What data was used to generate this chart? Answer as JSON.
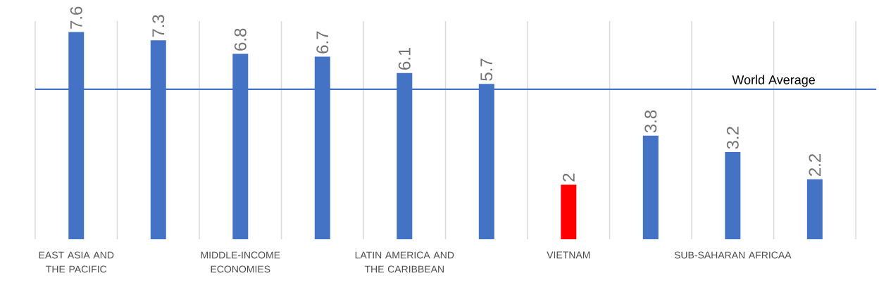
{
  "chart_data": {
    "type": "bar",
    "categories": [
      "EAST ASIA AND THE PACIFIC",
      null,
      "MIDDLE-INCOME ECONOMIES",
      null,
      "LATIN AMERICA AND THE CARIBBEAN",
      null,
      "VIETNAM",
      null,
      "SUB-SAHARAN AFRICAA",
      null
    ],
    "values": [
      7.6,
      7.3,
      6.8,
      6.7,
      6.1,
      5.7,
      2,
      3.8,
      3.2,
      2.2
    ],
    "colors": [
      "#4472c4",
      "#4472c4",
      "#4472c4",
      "#4472c4",
      "#4472c4",
      "#4472c4",
      "#ff0000",
      "#4472c4",
      "#4472c4",
      "#4472c4"
    ],
    "data_labels": true,
    "ylim": [
      0,
      8
    ],
    "tick_labels": "x",
    "grid": "x",
    "ref_lines": [
      {
        "axis": "y",
        "value": 5.5,
        "label": "World Average",
        "color": "#4472c4"
      }
    ]
  }
}
